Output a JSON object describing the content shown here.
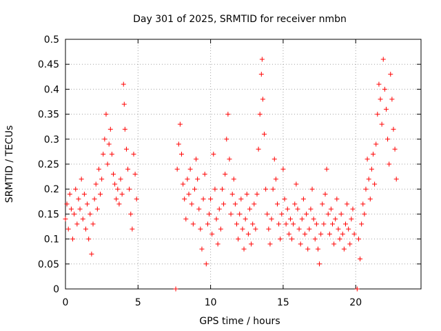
{
  "chart_data": {
    "type": "scatter",
    "title": "Day 301 of 2025, SRMTID for receiver nmbn",
    "xlabel": "GPS time / hours",
    "ylabel": "SRMTID / TECUs",
    "xlim": [
      0,
      24.5
    ],
    "ylim": [
      0,
      0.5
    ],
    "xticks": [
      0,
      5,
      10,
      15,
      20
    ],
    "yticks": [
      0,
      0.05,
      0.1,
      0.15,
      0.2,
      0.25,
      0.3,
      0.35,
      0.4,
      0.45,
      0.5
    ],
    "xtick_labels": [
      "0",
      "5",
      "10",
      "15",
      "20"
    ],
    "ytick_labels": [
      "0",
      "0.05",
      "0.1",
      "0.15",
      "0.2",
      "0.25",
      "0.3",
      "0.35",
      "0.4",
      "0.45",
      "0.5"
    ],
    "grid": true,
    "marker": "+",
    "color": "#ff0000",
    "series": [
      {
        "name": "SRMTID",
        "points": [
          [
            0.0,
            0.14
          ],
          [
            0.1,
            0.17
          ],
          [
            0.2,
            0.12
          ],
          [
            0.3,
            0.19
          ],
          [
            0.4,
            0.16
          ],
          [
            0.5,
            0.1
          ],
          [
            0.6,
            0.15
          ],
          [
            0.7,
            0.2
          ],
          [
            0.8,
            0.13
          ],
          [
            0.9,
            0.18
          ],
          [
            1.0,
            0.16
          ],
          [
            1.1,
            0.22
          ],
          [
            1.2,
            0.14
          ],
          [
            1.3,
            0.19
          ],
          [
            1.4,
            0.12
          ],
          [
            1.5,
            0.17
          ],
          [
            1.6,
            0.1
          ],
          [
            1.7,
            0.15
          ],
          [
            1.8,
            0.07
          ],
          [
            1.9,
            0.13
          ],
          [
            2.0,
            0.18
          ],
          [
            2.1,
            0.21
          ],
          [
            2.2,
            0.16
          ],
          [
            2.3,
            0.24
          ],
          [
            2.4,
            0.19
          ],
          [
            2.5,
            0.22
          ],
          [
            2.6,
            0.27
          ],
          [
            2.7,
            0.3
          ],
          [
            2.8,
            0.35
          ],
          [
            2.9,
            0.25
          ],
          [
            3.0,
            0.29
          ],
          [
            3.1,
            0.32
          ],
          [
            3.2,
            0.27
          ],
          [
            3.3,
            0.23
          ],
          [
            3.4,
            0.21
          ],
          [
            3.5,
            0.18
          ],
          [
            3.6,
            0.2
          ],
          [
            3.7,
            0.17
          ],
          [
            3.8,
            0.22
          ],
          [
            3.9,
            0.19
          ],
          [
            4.0,
            0.41
          ],
          [
            4.05,
            0.37
          ],
          [
            4.1,
            0.32
          ],
          [
            4.2,
            0.28
          ],
          [
            4.3,
            0.24
          ],
          [
            4.4,
            0.2
          ],
          [
            4.5,
            0.15
          ],
          [
            4.6,
            0.12
          ],
          [
            4.7,
            0.27
          ],
          [
            4.8,
            0.23
          ],
          [
            4.9,
            0.18
          ],
          [
            7.6,
            0.0
          ],
          [
            7.7,
            0.24
          ],
          [
            7.8,
            0.29
          ],
          [
            7.9,
            0.33
          ],
          [
            8.0,
            0.27
          ],
          [
            8.1,
            0.21
          ],
          [
            8.2,
            0.18
          ],
          [
            8.3,
            0.14
          ],
          [
            8.4,
            0.22
          ],
          [
            8.5,
            0.19
          ],
          [
            8.6,
            0.24
          ],
          [
            8.7,
            0.17
          ],
          [
            8.8,
            0.13
          ],
          [
            8.9,
            0.2
          ],
          [
            9.0,
            0.26
          ],
          [
            9.1,
            0.22
          ],
          [
            9.2,
            0.16
          ],
          [
            9.3,
            0.12
          ],
          [
            9.4,
            0.08
          ],
          [
            9.5,
            0.18
          ],
          [
            9.6,
            0.23
          ],
          [
            9.7,
            0.05
          ],
          [
            9.8,
            0.13
          ],
          [
            9.9,
            0.15
          ],
          [
            10.0,
            0.18
          ],
          [
            10.1,
            0.11
          ],
          [
            10.2,
            0.27
          ],
          [
            10.3,
            0.2
          ],
          [
            10.4,
            0.14
          ],
          [
            10.5,
            0.09
          ],
          [
            10.6,
            0.16
          ],
          [
            10.7,
            0.12
          ],
          [
            10.8,
            0.2
          ],
          [
            10.9,
            0.17
          ],
          [
            11.0,
            0.23
          ],
          [
            11.1,
            0.3
          ],
          [
            11.2,
            0.35
          ],
          [
            11.3,
            0.26
          ],
          [
            11.4,
            0.15
          ],
          [
            11.5,
            0.19
          ],
          [
            11.6,
            0.22
          ],
          [
            11.7,
            0.17
          ],
          [
            11.8,
            0.13
          ],
          [
            11.9,
            0.1
          ],
          [
            12.0,
            0.15
          ],
          [
            12.1,
            0.18
          ],
          [
            12.2,
            0.12
          ],
          [
            12.3,
            0.08
          ],
          [
            12.4,
            0.14
          ],
          [
            12.5,
            0.19
          ],
          [
            12.6,
            0.11
          ],
          [
            12.7,
            0.16
          ],
          [
            12.8,
            0.09
          ],
          [
            12.9,
            0.13
          ],
          [
            13.0,
            0.17
          ],
          [
            13.1,
            0.12
          ],
          [
            13.2,
            0.19
          ],
          [
            13.3,
            0.28
          ],
          [
            13.4,
            0.35
          ],
          [
            13.5,
            0.43
          ],
          [
            13.55,
            0.46
          ],
          [
            13.6,
            0.38
          ],
          [
            13.7,
            0.31
          ],
          [
            13.8,
            0.2
          ],
          [
            13.9,
            0.15
          ],
          [
            14.0,
            0.12
          ],
          [
            14.1,
            0.09
          ],
          [
            14.2,
            0.14
          ],
          [
            14.3,
            0.2
          ],
          [
            14.4,
            0.26
          ],
          [
            14.5,
            0.22
          ],
          [
            14.6,
            0.17
          ],
          [
            14.7,
            0.13
          ],
          [
            14.8,
            0.1
          ],
          [
            14.9,
            0.15
          ],
          [
            15.0,
            0.24
          ],
          [
            15.1,
            0.18
          ],
          [
            15.2,
            0.13
          ],
          [
            15.3,
            0.16
          ],
          [
            15.4,
            0.11
          ],
          [
            15.5,
            0.14
          ],
          [
            15.6,
            0.1
          ],
          [
            15.7,
            0.13
          ],
          [
            15.8,
            0.17
          ],
          [
            15.9,
            0.21
          ],
          [
            16.0,
            0.16
          ],
          [
            16.1,
            0.12
          ],
          [
            16.2,
            0.09
          ],
          [
            16.3,
            0.14
          ],
          [
            16.4,
            0.18
          ],
          [
            16.5,
            0.11
          ],
          [
            16.6,
            0.15
          ],
          [
            16.7,
            0.08
          ],
          [
            16.8,
            0.12
          ],
          [
            16.9,
            0.16
          ],
          [
            17.0,
            0.2
          ],
          [
            17.1,
            0.14
          ],
          [
            17.2,
            0.1
          ],
          [
            17.3,
            0.13
          ],
          [
            17.4,
            0.08
          ],
          [
            17.5,
            0.05
          ],
          [
            17.6,
            0.11
          ],
          [
            17.7,
            0.17
          ],
          [
            17.8,
            0.13
          ],
          [
            17.9,
            0.19
          ],
          [
            18.0,
            0.24
          ],
          [
            18.1,
            0.15
          ],
          [
            18.2,
            0.11
          ],
          [
            18.3,
            0.16
          ],
          [
            18.4,
            0.13
          ],
          [
            18.5,
            0.09
          ],
          [
            18.6,
            0.14
          ],
          [
            18.7,
            0.18
          ],
          [
            18.8,
            0.12
          ],
          [
            18.9,
            0.1
          ],
          [
            19.0,
            0.15
          ],
          [
            19.1,
            0.11
          ],
          [
            19.2,
            0.08
          ],
          [
            19.3,
            0.13
          ],
          [
            19.4,
            0.17
          ],
          [
            19.5,
            0.12
          ],
          [
            19.6,
            0.09
          ],
          [
            19.7,
            0.14
          ],
          [
            19.8,
            0.16
          ],
          [
            19.9,
            0.11
          ],
          [
            20.1,
            0.0
          ],
          [
            20.2,
            0.1
          ],
          [
            20.3,
            0.06
          ],
          [
            20.4,
            0.13
          ],
          [
            20.5,
            0.17
          ],
          [
            20.6,
            0.15
          ],
          [
            20.7,
            0.2
          ],
          [
            20.8,
            0.26
          ],
          [
            20.9,
            0.22
          ],
          [
            21.0,
            0.18
          ],
          [
            21.1,
            0.24
          ],
          [
            21.2,
            0.27
          ],
          [
            21.3,
            0.21
          ],
          [
            21.4,
            0.29
          ],
          [
            21.5,
            0.35
          ],
          [
            21.6,
            0.41
          ],
          [
            21.7,
            0.38
          ],
          [
            21.8,
            0.33
          ],
          [
            21.9,
            0.46
          ],
          [
            22.0,
            0.4
          ],
          [
            22.1,
            0.36
          ],
          [
            22.2,
            0.3
          ],
          [
            22.3,
            0.25
          ],
          [
            22.4,
            0.43
          ],
          [
            22.5,
            0.38
          ],
          [
            22.6,
            0.32
          ],
          [
            22.7,
            0.28
          ],
          [
            22.8,
            0.22
          ]
        ]
      }
    ]
  }
}
